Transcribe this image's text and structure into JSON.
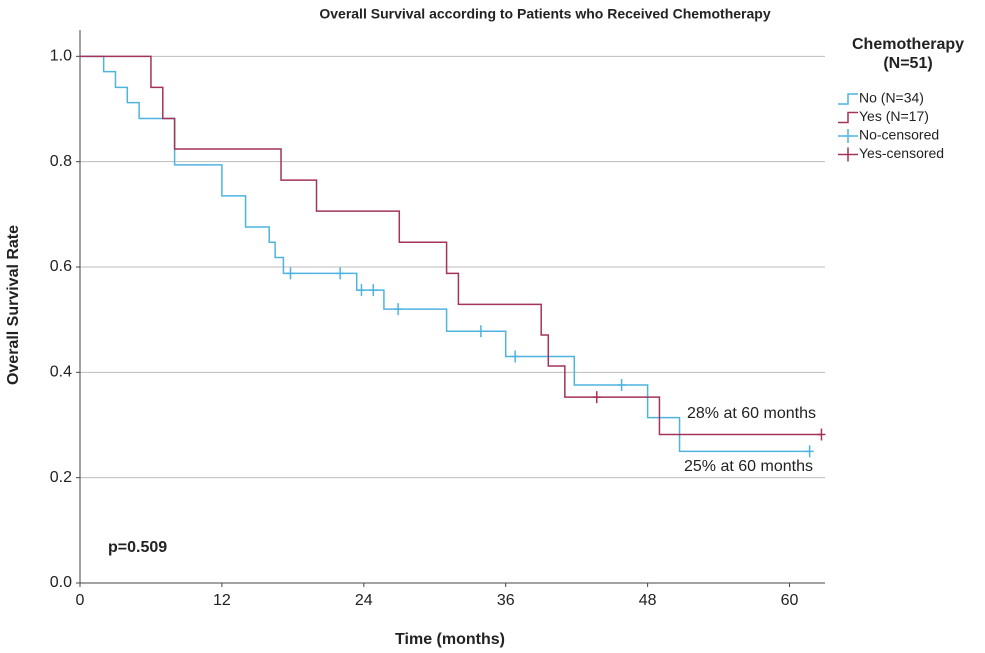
{
  "chart_data": {
    "type": "km",
    "title": "Overall Survival according to Patients who Received Chemotherapy",
    "x_label": "Time (months)",
    "y_label": "Overall Survival Rate",
    "legend_title": [
      "Chemotherapy",
      "(N=51)"
    ],
    "legend_position": "right",
    "grid": true,
    "xlim": [
      0,
      63
    ],
    "ylim": [
      0,
      1.05
    ],
    "xticks": [
      0,
      12,
      24,
      36,
      48,
      60
    ],
    "yticks": [
      {
        "value": 0,
        "label": "0.0"
      },
      0.2,
      0.4,
      0.6,
      0.8,
      {
        "value": 1,
        "label": "1.0"
      }
    ],
    "series": [
      {
        "name": "No (N=34)",
        "kind": "step",
        "color": "#4fb3e0",
        "x": [
          0,
          2,
          3,
          4,
          5,
          8,
          12,
          14,
          16,
          16.5,
          17.2,
          23.4,
          25.7,
          31,
          36,
          41.8,
          48,
          50.7,
          61.7
        ],
        "values": [
          1,
          0.971,
          0.941,
          0.912,
          0.882,
          0.794,
          0.735,
          0.676,
          0.647,
          0.618,
          0.588,
          0.556,
          0.52,
          0.478,
          0.43,
          0.376,
          0.314,
          0.25,
          0.25
        ]
      },
      {
        "name": "Yes (N=17)",
        "kind": "step",
        "color": "#a3335a",
        "x": [
          0,
          6,
          7,
          8,
          17,
          20,
          27,
          31,
          32,
          39,
          39.6,
          41,
          49,
          62.7
        ],
        "values": [
          1,
          0.941,
          0.882,
          0.824,
          0.765,
          0.706,
          0.647,
          0.588,
          0.529,
          0.471,
          0.412,
          0.353,
          0.282,
          0.282
        ]
      },
      {
        "name": "No-censored",
        "kind": "censor",
        "color": "#4fb3e0",
        "x": [
          17.8,
          22,
          23.8,
          24.8,
          26.9,
          33.9,
          36.8,
          45.8,
          61.7
        ],
        "values": [
          0.588,
          0.588,
          0.556,
          0.556,
          0.52,
          0.478,
          0.43,
          0.376,
          0.25
        ]
      },
      {
        "name": "Yes-censored",
        "kind": "censor",
        "color": "#a3335a",
        "x": [
          43.7,
          62.7
        ],
        "values": [
          0.353,
          0.282
        ]
      }
    ],
    "annotations": [
      "28% at 60 months",
      "25% at 60 months",
      "p=0.509"
    ]
  }
}
